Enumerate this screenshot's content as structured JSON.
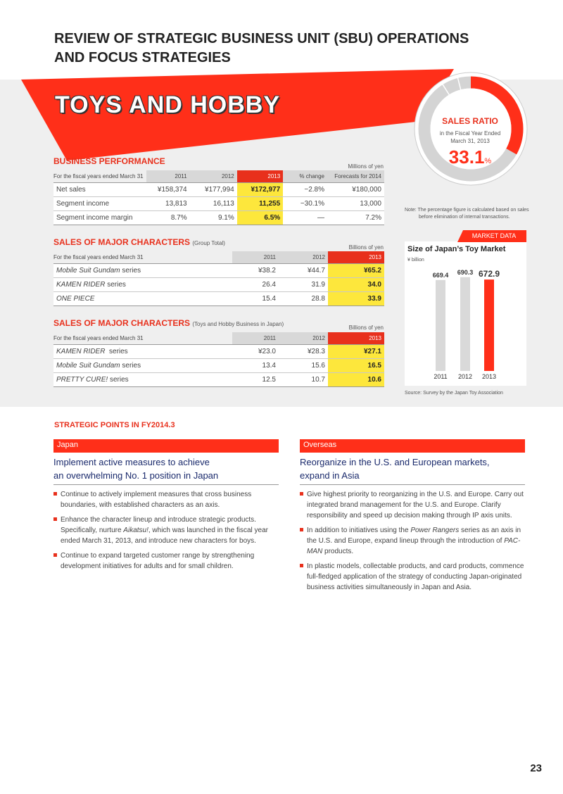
{
  "header": {
    "title_line1": "REVIEW OF STRATEGIC BUSINESS UNIT (SBU) OPERATIONS",
    "title_line2": "AND FOCUS STRATEGIES"
  },
  "banner": {
    "title": "TOYS AND HOBBY"
  },
  "sales_ratio": {
    "title": "SALES RATIO",
    "subtitle1": "in the Fiscal Year Ended",
    "subtitle2": "March 31, 2013",
    "value": "33.1",
    "unit": "%",
    "fraction": 0.331,
    "note1": "Note: The percentage figure is calculated based on sales",
    "note2": "before elimination of internal transactions."
  },
  "business_performance": {
    "title": "BUSINESS PERFORMANCE",
    "unit": "Millions of yen",
    "headers": [
      "For the fiscal years ended March 31",
      "2011",
      "2012",
      "2013",
      "% change",
      "Forecasts for 2014"
    ],
    "rows": [
      [
        "Net sales",
        "¥158,374",
        "¥177,994",
        "¥172,977",
        "−2.8%",
        "¥180,000"
      ],
      [
        "Segment income",
        "13,813",
        "16,113",
        "11,255",
        "−30.1%",
        "13,000"
      ],
      [
        "Segment income margin",
        "8.7%",
        "9.1%",
        "6.5%",
        "—",
        "7.2%"
      ]
    ]
  },
  "characters_group": {
    "title": "SALES OF MAJOR CHARACTERS",
    "qualifier": "(Group Total)",
    "unit": "Billions of yen",
    "headers": [
      "For the fiscal years ended March 31",
      "2011",
      "2012",
      "2013"
    ],
    "rows": [
      {
        "name": "Mobile Suit Gundam",
        "suffix": " series",
        "values": [
          "¥38.2",
          "¥44.7",
          "¥65.2"
        ]
      },
      {
        "name": "KAMEN RIDER",
        "suffix": " series",
        "values": [
          "26.4",
          "31.9",
          "34.0"
        ]
      },
      {
        "name": "ONE PIECE",
        "suffix": "",
        "values": [
          "15.4",
          "28.8",
          "33.9"
        ]
      }
    ]
  },
  "characters_japan": {
    "title": "SALES OF MAJOR CHARACTERS",
    "qualifier": "(Toys and Hobby Business in Japan)",
    "unit": "Billions of yen",
    "headers": [
      "For the fiscal years ended March 31",
      "2011",
      "2012",
      "2013"
    ],
    "rows": [
      {
        "name": "KAMEN RIDER",
        "suffix": "  series",
        "values": [
          "¥23.0",
          "¥28.3",
          "¥27.1"
        ]
      },
      {
        "name": "Mobile Suit Gundam",
        "suffix": " series",
        "values": [
          "13.4",
          "15.6",
          "16.5"
        ]
      },
      {
        "name": "PRETTY CURE!",
        "suffix": " series",
        "values": [
          "12.5",
          "10.7",
          "10.6"
        ]
      }
    ]
  },
  "market_data": {
    "tab": "MARKET DATA",
    "title": "Size of Japan’s Toy Market",
    "unit": "¥ billion",
    "source": "Source: Survey by the Japan Toy Association",
    "colors": {
      "past": "#d9d9d9",
      "current": "#ff2f19"
    }
  },
  "chart_data": {
    "type": "bar",
    "title": "Size of Japan’s Toy Market",
    "ylabel": "¥ billion",
    "categories": [
      "2011",
      "2012",
      "2013"
    ],
    "values": [
      669.4,
      690.3,
      672.9
    ],
    "value_labels": [
      "669.4",
      "690.3",
      "672.9"
    ],
    "grid": false
  },
  "strategic": {
    "title": "STRATEGIC POINTS IN FY2014.3",
    "japan": {
      "label": "Japan",
      "heading1": "Implement active measures to achieve",
      "heading2": "an overwhelming No. 1 position in Japan",
      "bullets": [
        [
          {
            "t": "Continue to actively implement measures that cross business boundaries, with established characters as an axis."
          }
        ],
        [
          {
            "t": "Enhance the character lineup and introduce strategic products. Specifically, nurture "
          },
          {
            "t": "Aikatsu!",
            "i": true
          },
          {
            "t": ", which was launched in the fiscal year ended March 31, 2013, and introduce new characters for boys."
          }
        ],
        [
          {
            "t": "Continue to expand targeted customer range by strengthening development initiatives for adults and for small children."
          }
        ]
      ]
    },
    "overseas": {
      "label": "Overseas",
      "heading1": "Reorganize in the U.S. and European markets,",
      "heading2": "expand in Asia",
      "bullets": [
        [
          {
            "t": "Give highest priority to reorganizing in the U.S. and Europe. Carry out integrated brand management for the U.S. and Europe. Clarify responsibility and speed up decision making through IP axis units."
          }
        ],
        [
          {
            "t": "In addition to initiatives using the "
          },
          {
            "t": "Power Rangers",
            "i": true
          },
          {
            "t": " series as an axis in the U.S. and Europe, expand lineup through the introduction of "
          },
          {
            "t": "PAC-MAN",
            "i": true
          },
          {
            "t": " products."
          }
        ],
        [
          {
            "t": "In plastic models, collectable products, and card products, commence full-fledged application of the strategy of conducting Japan-originated business activities simultaneously in Japan and Asia."
          }
        ]
      ]
    }
  },
  "page_number": "23"
}
